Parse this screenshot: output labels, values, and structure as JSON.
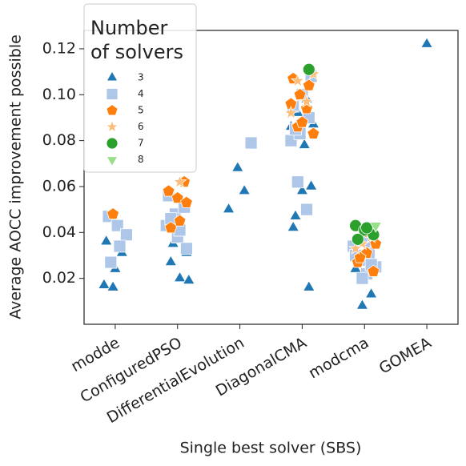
{
  "chart_data": {
    "type": "scatter",
    "x_label": "Single best solver (SBS)",
    "y_label": "Average AOCC improvement possible",
    "categories": [
      "modde",
      "ConfiguredPSO",
      "DifferentialEvolution",
      "DiagonalCMA",
      "modcma",
      "GOMEA"
    ],
    "ylim": [
      0.0,
      0.128
    ],
    "yticks": [
      0.02,
      0.04,
      0.06,
      0.08,
      {
        "value": 0.1,
        "label": "0.10"
      },
      0.12
    ],
    "legend_title": [
      "Number",
      "of solvers"
    ],
    "legend": "upper left",
    "series": [
      {
        "name": "3",
        "color": "#1f77b4",
        "marker": "triangle-up",
        "x": [
          "modde",
          "modde",
          "modde",
          "modde",
          "modde",
          "ConfiguredPSO",
          "ConfiguredPSO",
          "ConfiguredPSO",
          "ConfiguredPSO",
          "ConfiguredPSO",
          "DifferentialEvolution",
          "DifferentialEvolution",
          "DifferentialEvolution",
          "DiagonalCMA",
          "DiagonalCMA",
          "DiagonalCMA",
          "DiagonalCMA",
          "DiagonalCMA",
          "DiagonalCMA",
          "DiagonalCMA",
          "DiagonalCMA",
          "DiagonalCMA",
          "DiagonalCMA",
          "modcma",
          "modcma",
          "modcma",
          "GOMEA"
        ],
        "values": [
          0.017,
          0.016,
          0.031,
          0.036,
          0.024,
          0.031,
          0.027,
          0.02,
          0.019,
          0.035,
          0.058,
          0.05,
          0.068,
          0.016,
          0.042,
          0.058,
          0.06,
          0.047,
          0.078,
          0.087,
          0.092,
          0.098,
          0.086,
          0.008,
          0.013,
          0.024,
          0.122
        ]
      },
      {
        "name": "4",
        "color": "#aec7e8",
        "marker": "square",
        "x": [
          "modde",
          "modde",
          "modde",
          "modde",
          "modde",
          "ConfiguredPSO",
          "ConfiguredPSO",
          "ConfiguredPSO",
          "ConfiguredPSO",
          "ConfiguredPSO",
          "ConfiguredPSO",
          "ConfiguredPSO",
          "ConfiguredPSO",
          "DifferentialEvolution",
          "DiagonalCMA",
          "DiagonalCMA",
          "DiagonalCMA",
          "DiagonalCMA",
          "DiagonalCMA",
          "DiagonalCMA",
          "DiagonalCMA",
          "DiagonalCMA",
          "DiagonalCMA",
          "modcma",
          "modcma",
          "modcma",
          "modcma",
          "modcma",
          "modcma",
          "modcma",
          "modcma",
          "modcma"
        ],
        "values": [
          0.047,
          0.043,
          0.039,
          0.027,
          0.034,
          0.043,
          0.048,
          0.051,
          0.056,
          0.038,
          0.033,
          0.046,
          0.041,
          0.079,
          0.062,
          0.05,
          0.08,
          0.083,
          0.09,
          0.095,
          0.1,
          0.108,
          0.085,
          0.022,
          0.025,
          0.028,
          0.031,
          0.034,
          0.02,
          0.026,
          0.03,
          0.036
        ]
      },
      {
        "name": "5",
        "color": "#ff7f0e",
        "marker": "pentagon",
        "x": [
          "modde",
          "ConfiguredPSO",
          "ConfiguredPSO",
          "ConfiguredPSO",
          "ConfiguredPSO",
          "ConfiguredPSO",
          "ConfiguredPSO",
          "DiagonalCMA",
          "DiagonalCMA",
          "DiagonalCMA",
          "DiagonalCMA",
          "DiagonalCMA",
          "DiagonalCMA",
          "DiagonalCMA",
          "DiagonalCMA",
          "modcma",
          "modcma",
          "modcma",
          "modcma",
          "modcma",
          "modcma"
        ],
        "values": [
          0.048,
          0.062,
          0.058,
          0.055,
          0.053,
          0.042,
          0.045,
          0.083,
          0.086,
          0.094,
          0.096,
          0.1,
          0.104,
          0.107,
          0.088,
          0.023,
          0.027,
          0.031,
          0.035,
          0.029,
          0.04
        ]
      },
      {
        "name": "6",
        "color": "#ffbb78",
        "marker": "star",
        "x": [
          "ConfiguredPSO",
          "DiagonalCMA",
          "DiagonalCMA",
          "DiagonalCMA",
          "DiagonalCMA",
          "modcma",
          "modcma",
          "modcma"
        ],
        "values": [
          0.062,
          0.109,
          0.106,
          0.097,
          0.092,
          0.035,
          0.038,
          0.033
        ]
      },
      {
        "name": "7",
        "color": "#2ca02c",
        "marker": "circle",
        "x": [
          "DiagonalCMA",
          "modcma",
          "modcma",
          "modcma",
          "modcma",
          "modcma"
        ],
        "values": [
          0.111,
          0.043,
          0.041,
          0.039,
          0.037,
          0.042
        ]
      },
      {
        "name": "8",
        "color": "#98df8a",
        "marker": "triangle-down",
        "x": [
          "modcma"
        ],
        "values": [
          0.043
        ]
      }
    ]
  }
}
